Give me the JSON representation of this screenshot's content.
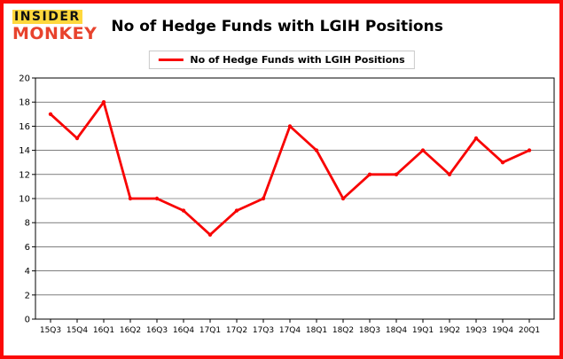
{
  "brand": {
    "line1": "INSIDER",
    "line2": "MONKEY"
  },
  "header": {
    "title": "No of Hedge Funds with LGIH Positions"
  },
  "legend": {
    "label": "No of Hedge Funds with LGIH Positions"
  },
  "colors": {
    "frame": "#fb0a07",
    "series": "#f80303",
    "grid": "#1a1a1a",
    "axis": "#000000",
    "logo_monkey": "#e8432d",
    "logo_highlight": "#ffd83d",
    "tick_text": "#000000"
  },
  "chart_data": {
    "type": "line",
    "title": "No of Hedge Funds with LGIH Positions",
    "categories": [
      "15Q3",
      "15Q4",
      "16Q1",
      "16Q2",
      "16Q3",
      "16Q4",
      "17Q1",
      "17Q2",
      "17Q3",
      "17Q4",
      "18Q1",
      "18Q2",
      "18Q3",
      "18Q4",
      "19Q1",
      "19Q2",
      "19Q3",
      "19Q4",
      "20Q1"
    ],
    "values": [
      17,
      15,
      18,
      10,
      10,
      9,
      7,
      9,
      10,
      16,
      14,
      10,
      12,
      12,
      14,
      12,
      15,
      13,
      14
    ],
    "series": [
      {
        "name": "No of Hedge Funds with LGIH Positions",
        "values": [
          17,
          15,
          18,
          10,
          10,
          9,
          7,
          9,
          10,
          16,
          14,
          10,
          12,
          12,
          14,
          12,
          15,
          13,
          14
        ]
      }
    ],
    "xlabel": "",
    "ylabel": "",
    "ylim": [
      0,
      20
    ],
    "yticks": [
      0,
      2,
      4,
      6,
      8,
      10,
      12,
      14,
      16,
      18,
      20
    ],
    "grid": true,
    "legend_position": "top-center"
  }
}
